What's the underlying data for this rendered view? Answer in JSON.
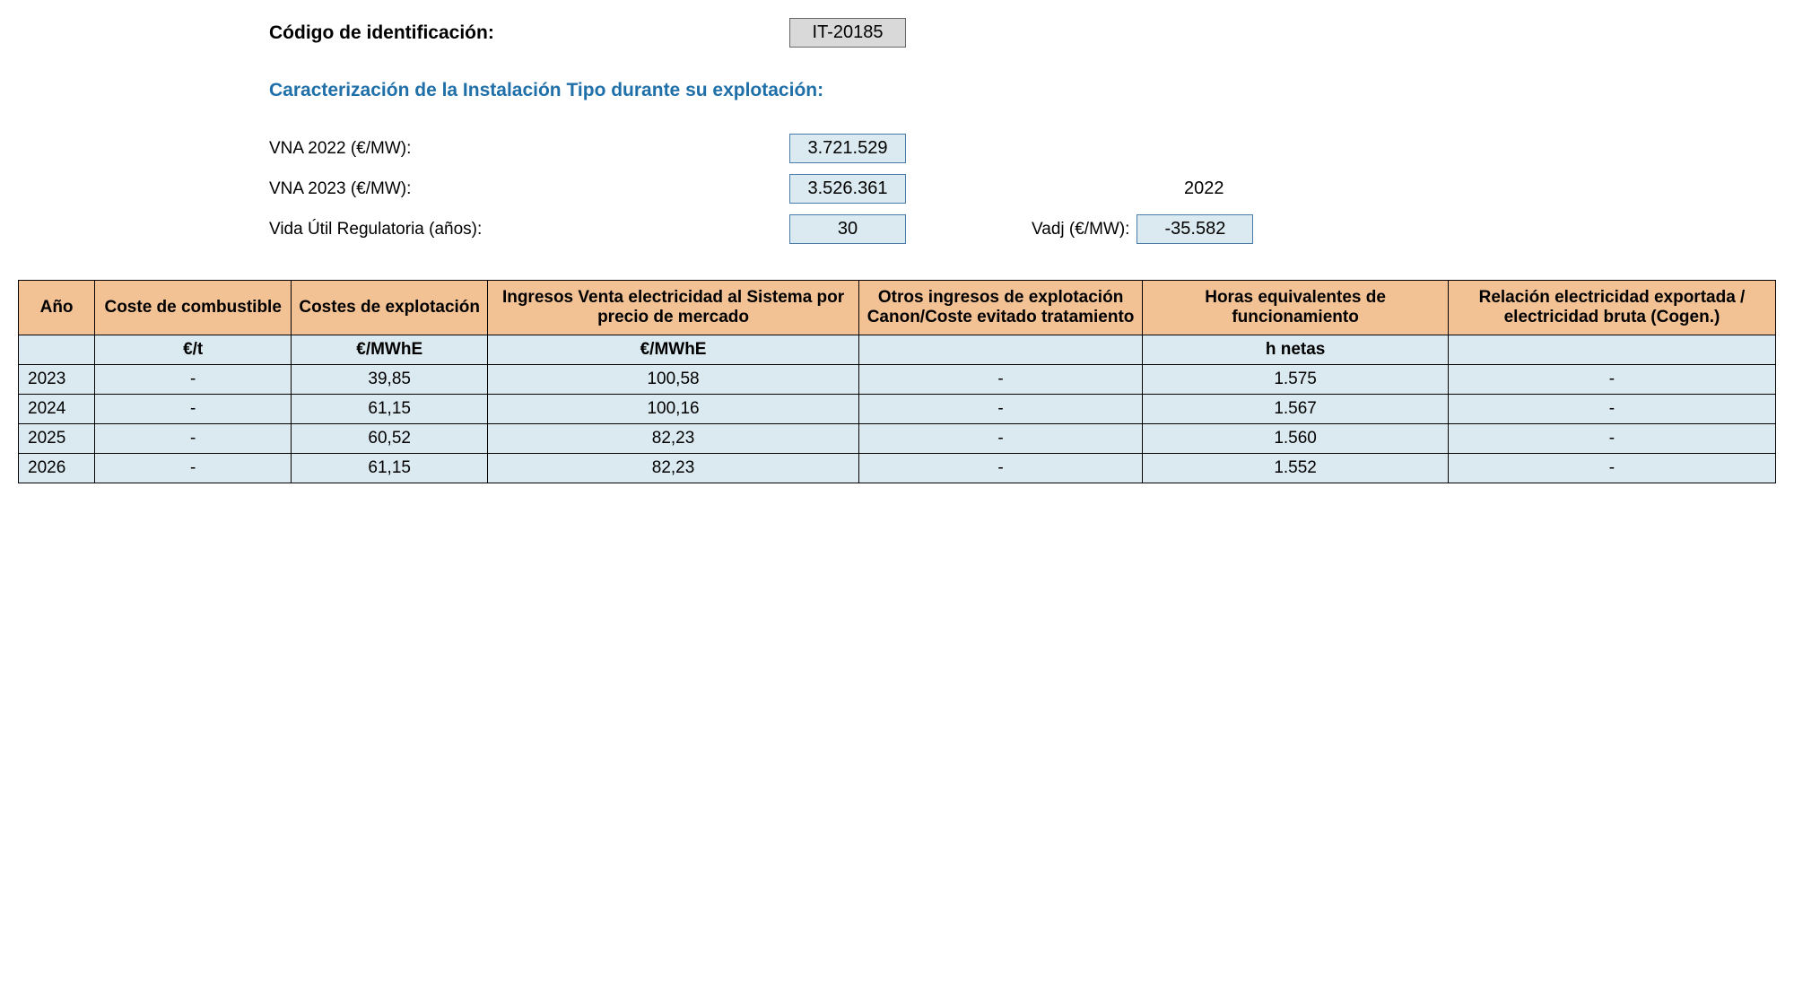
{
  "header": {
    "code_label": "Código de identificación:",
    "code_value": "IT-20185",
    "caracterizacion_label": "Caracterización de la Instalación Tipo durante su explotación:",
    "vna2022_label": "VNA 2022 (€/MW):",
    "vna2022_value": "3.721.529",
    "vna2023_label": "VNA 2023 (€/MW):",
    "vna2023_value": "3.526.361",
    "vida_label": "Vida Útil Regulatoria (años):",
    "vida_value": "30",
    "year_extra": "2022",
    "vadj_label": "Vadj (€/MW):",
    "vadj_value": "-35.582"
  },
  "table": {
    "columns": [
      "Año",
      "Coste de combustible",
      "Costes de explotación",
      "Ingresos Venta electricidad al Sistema por precio de mercado",
      "Otros ingresos de explotación Canon/Coste evitado tratamiento",
      "Horas equivalentes de funcionamiento",
      "Relación electricidad exportada / electricidad bruta (Cogen.)"
    ],
    "units": [
      "",
      "€/t",
      "€/MWhE",
      "€/MWhE",
      "",
      "h netas",
      ""
    ],
    "rows": [
      [
        "2023",
        "-",
        "39,85",
        "100,58",
        "-",
        "1.575",
        "-"
      ],
      [
        "2024",
        "-",
        "61,15",
        "100,16",
        "-",
        "1.567",
        "-"
      ],
      [
        "2025",
        "-",
        "60,52",
        "82,23",
        "-",
        "1.560",
        "-"
      ],
      [
        "2026",
        "-",
        "61,15",
        "82,23",
        "-",
        "1.552",
        "-"
      ]
    ]
  }
}
